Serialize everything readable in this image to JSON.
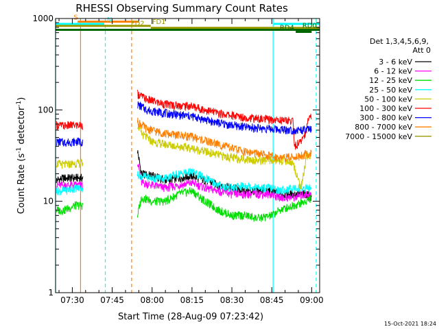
{
  "chart_data": {
    "type": "line",
    "title": "RHESSI Observing Summary Count Rates",
    "xlabel": "Start Time (28-Aug-09 07:23:42)",
    "ylabel": "Count Rate (s",
    "ylabel_sup": "-1",
    "ylabel_rest": " detector",
    "ylabel_sup2": "-1",
    "ylabel_end": ")",
    "footer": "15-Oct-2021 18:24",
    "x_unit": "minutes",
    "xlim": [
      443.7,
      543.0
    ],
    "ylim": [
      1,
      1000
    ],
    "yscale": "log",
    "x_ticks": [
      {
        "value": 450,
        "label": "07:30"
      },
      {
        "value": 465,
        "label": "07:45"
      },
      {
        "value": 480,
        "label": "08:00"
      },
      {
        "value": 495,
        "label": "08:15"
      },
      {
        "value": 510,
        "label": "08:30"
      },
      {
        "value": 525,
        "label": "08:45"
      },
      {
        "value": 540,
        "label": "09:00"
      }
    ],
    "y_ticks": [
      {
        "value": 1,
        "label": "1"
      },
      {
        "value": 10,
        "label": "10"
      },
      {
        "value": 100,
        "label": "100"
      },
      {
        "value": 1000,
        "label": "1000"
      }
    ],
    "legend": {
      "placement": "right",
      "header": [
        "Det 1,3,4,5,6,9,",
        "Att 0"
      ]
    },
    "gap": [
      454.0,
      474.5
    ],
    "series": [
      {
        "name": "3 - 6 keV",
        "color": "#000000",
        "points": [
          [
            444,
            17
          ],
          [
            447,
            18
          ],
          [
            451,
            18
          ],
          [
            474.5,
            36
          ],
          [
            476,
            20
          ],
          [
            480,
            19
          ],
          [
            485,
            17
          ],
          [
            490,
            18
          ],
          [
            495,
            19
          ],
          [
            500,
            17
          ],
          [
            505,
            15
          ],
          [
            510,
            14
          ],
          [
            515,
            13
          ],
          [
            520,
            13
          ],
          [
            525,
            13
          ],
          [
            528,
            12
          ],
          [
            533,
            12
          ],
          [
            538,
            12
          ],
          [
            540,
            11
          ]
        ]
      },
      {
        "name": "6 - 12 keV",
        "color": "#ff00ff",
        "points": [
          [
            444,
            15
          ],
          [
            447,
            15
          ],
          [
            451,
            15
          ],
          [
            474.5,
            28
          ],
          [
            476,
            16
          ],
          [
            480,
            15
          ],
          [
            485,
            14
          ],
          [
            490,
            15
          ],
          [
            495,
            16
          ],
          [
            500,
            14
          ],
          [
            505,
            13
          ],
          [
            510,
            12
          ],
          [
            515,
            12
          ],
          [
            520,
            12
          ],
          [
            525,
            12
          ],
          [
            528,
            11
          ],
          [
            533,
            11
          ],
          [
            538,
            12
          ],
          [
            540,
            12
          ]
        ]
      },
      {
        "name": "12 - 25 keV",
        "color": "#00dd00",
        "points": [
          [
            444,
            8
          ],
          [
            447,
            8
          ],
          [
            451,
            9
          ],
          [
            474.5,
            7
          ],
          [
            476,
            11
          ],
          [
            480,
            10
          ],
          [
            485,
            10
          ],
          [
            490,
            12
          ],
          [
            495,
            13
          ],
          [
            500,
            10
          ],
          [
            505,
            8
          ],
          [
            510,
            7
          ],
          [
            515,
            7
          ],
          [
            520,
            6.5
          ],
          [
            525,
            7
          ],
          [
            528,
            8
          ],
          [
            533,
            9
          ],
          [
            538,
            10
          ],
          [
            540,
            11
          ]
        ]
      },
      {
        "name": "25 - 50 keV",
        "color": "#00ffff",
        "points": [
          [
            444,
            13
          ],
          [
            447,
            13
          ],
          [
            451,
            14
          ],
          [
            474.5,
            20
          ],
          [
            476,
            19
          ],
          [
            480,
            18
          ],
          [
            485,
            18
          ],
          [
            490,
            20
          ],
          [
            495,
            21
          ],
          [
            500,
            18
          ],
          [
            505,
            15
          ],
          [
            510,
            14
          ],
          [
            515,
            15
          ],
          [
            520,
            14
          ],
          [
            525,
            14
          ],
          [
            528,
            13
          ],
          [
            533,
            14
          ],
          [
            538,
            14
          ],
          [
            540,
            14
          ]
        ]
      },
      {
        "name": "50 - 100 keV",
        "color": "#cccc00",
        "points": [
          [
            444,
            26
          ],
          [
            447,
            25
          ],
          [
            451,
            26
          ],
          [
            474.5,
            70
          ],
          [
            476,
            55
          ],
          [
            480,
            45
          ],
          [
            485,
            42
          ],
          [
            490,
            40
          ],
          [
            495,
            38
          ],
          [
            500,
            35
          ],
          [
            505,
            32
          ],
          [
            510,
            30
          ],
          [
            515,
            29
          ],
          [
            520,
            28
          ],
          [
            525,
            28
          ],
          [
            530,
            28
          ],
          [
            533,
            26
          ],
          [
            536,
            14
          ],
          [
            538,
            30
          ],
          [
            540,
            33
          ]
        ]
      },
      {
        "name": "100 - 300 keV",
        "color": "#ff0000",
        "points": [
          [
            444,
            68
          ],
          [
            447,
            67
          ],
          [
            451,
            68
          ],
          [
            474.5,
            150
          ],
          [
            478,
            130
          ],
          [
            485,
            115
          ],
          [
            490,
            112
          ],
          [
            495,
            110
          ],
          [
            500,
            100
          ],
          [
            505,
            92
          ],
          [
            510,
            87
          ],
          [
            515,
            83
          ],
          [
            520,
            80
          ],
          [
            525,
            78
          ],
          [
            530,
            77
          ],
          [
            533,
            76
          ],
          [
            533.5,
            40
          ],
          [
            536,
            45
          ],
          [
            538,
            60
          ],
          [
            539,
            88
          ],
          [
            540,
            85
          ]
        ]
      },
      {
        "name": "300 - 800 keV",
        "color": "#0000ff",
        "points": [
          [
            444,
            45
          ],
          [
            447,
            44
          ],
          [
            451,
            45
          ],
          [
            474.5,
            115
          ],
          [
            478,
            100
          ],
          [
            485,
            92
          ],
          [
            490,
            88
          ],
          [
            495,
            85
          ],
          [
            500,
            78
          ],
          [
            505,
            72
          ],
          [
            510,
            68
          ],
          [
            515,
            65
          ],
          [
            520,
            63
          ],
          [
            525,
            62
          ],
          [
            530,
            61
          ],
          [
            533,
            60
          ],
          [
            536,
            60
          ],
          [
            538,
            60
          ],
          [
            539,
            62
          ],
          [
            540,
            60
          ]
        ]
      },
      {
        "name": "800 - 7000 keV",
        "color": "#ff8000",
        "points": [
          [
            474.5,
            75
          ],
          [
            478,
            62
          ],
          [
            485,
            55
          ],
          [
            490,
            53
          ],
          [
            495,
            51
          ],
          [
            500,
            46
          ],
          [
            505,
            42
          ],
          [
            510,
            38
          ],
          [
            515,
            35
          ],
          [
            520,
            33
          ],
          [
            525,
            31
          ],
          [
            530,
            30
          ],
          [
            535,
            31
          ],
          [
            538,
            33
          ],
          [
            540,
            33
          ]
        ]
      },
      {
        "name": "7000 - 15000 keV",
        "color": "#999900",
        "points": []
      }
    ],
    "flags": [
      {
        "name": "S",
        "label": "S",
        "color": "#ff8000",
        "y": 1.3,
        "x0": 452.0,
        "x1": 475.0,
        "label_x": 450.5
      },
      {
        "name": "N",
        "label": "N",
        "color": "#00ffff",
        "y": 2.2,
        "x0": 443.7,
        "x1": 462.0,
        "label_x": 463.0
      },
      {
        "name": "N2",
        "label": "",
        "color": "#00ffff",
        "y": 2.2,
        "x0": 525.7,
        "x1": 543.0,
        "label_x": null
      },
      {
        "name": "FD1",
        "label": "FD1",
        "color": "#999900",
        "y": 3.0,
        "x0": 443.7,
        "x1": 479.5,
        "label_x": 480.0
      },
      {
        "name": "FD2",
        "label": "FD2",
        "color": "#999900",
        "y": 3.8,
        "x0": 479.5,
        "x1": 543.0,
        "label_x": 472.0
      },
      {
        "name": "RD0",
        "label": "RD0",
        "color": "#006600",
        "y": 4.6,
        "x0": 443.7,
        "x1": 543.0,
        "label_x": 536.5
      },
      {
        "name": "RD4",
        "label": "RD4",
        "color": "#006600",
        "y": 5.4,
        "x0": 534.0,
        "x1": 540.0,
        "label_x": 528.0
      }
    ],
    "vlines": [
      {
        "x": 443.7,
        "color": "#00ffff",
        "dash": false
      },
      {
        "x": 453.1,
        "color": "#ff8000",
        "dash": false
      },
      {
        "x": 462.4,
        "color": "#00ffff",
        "dash": true
      },
      {
        "x": 472.3,
        "color": "#ff8000",
        "dash": true
      },
      {
        "x": 525.5,
        "color": "#00ffff",
        "dash": false
      },
      {
        "x": 541.7,
        "color": "#00ffff",
        "dash": true
      }
    ]
  }
}
